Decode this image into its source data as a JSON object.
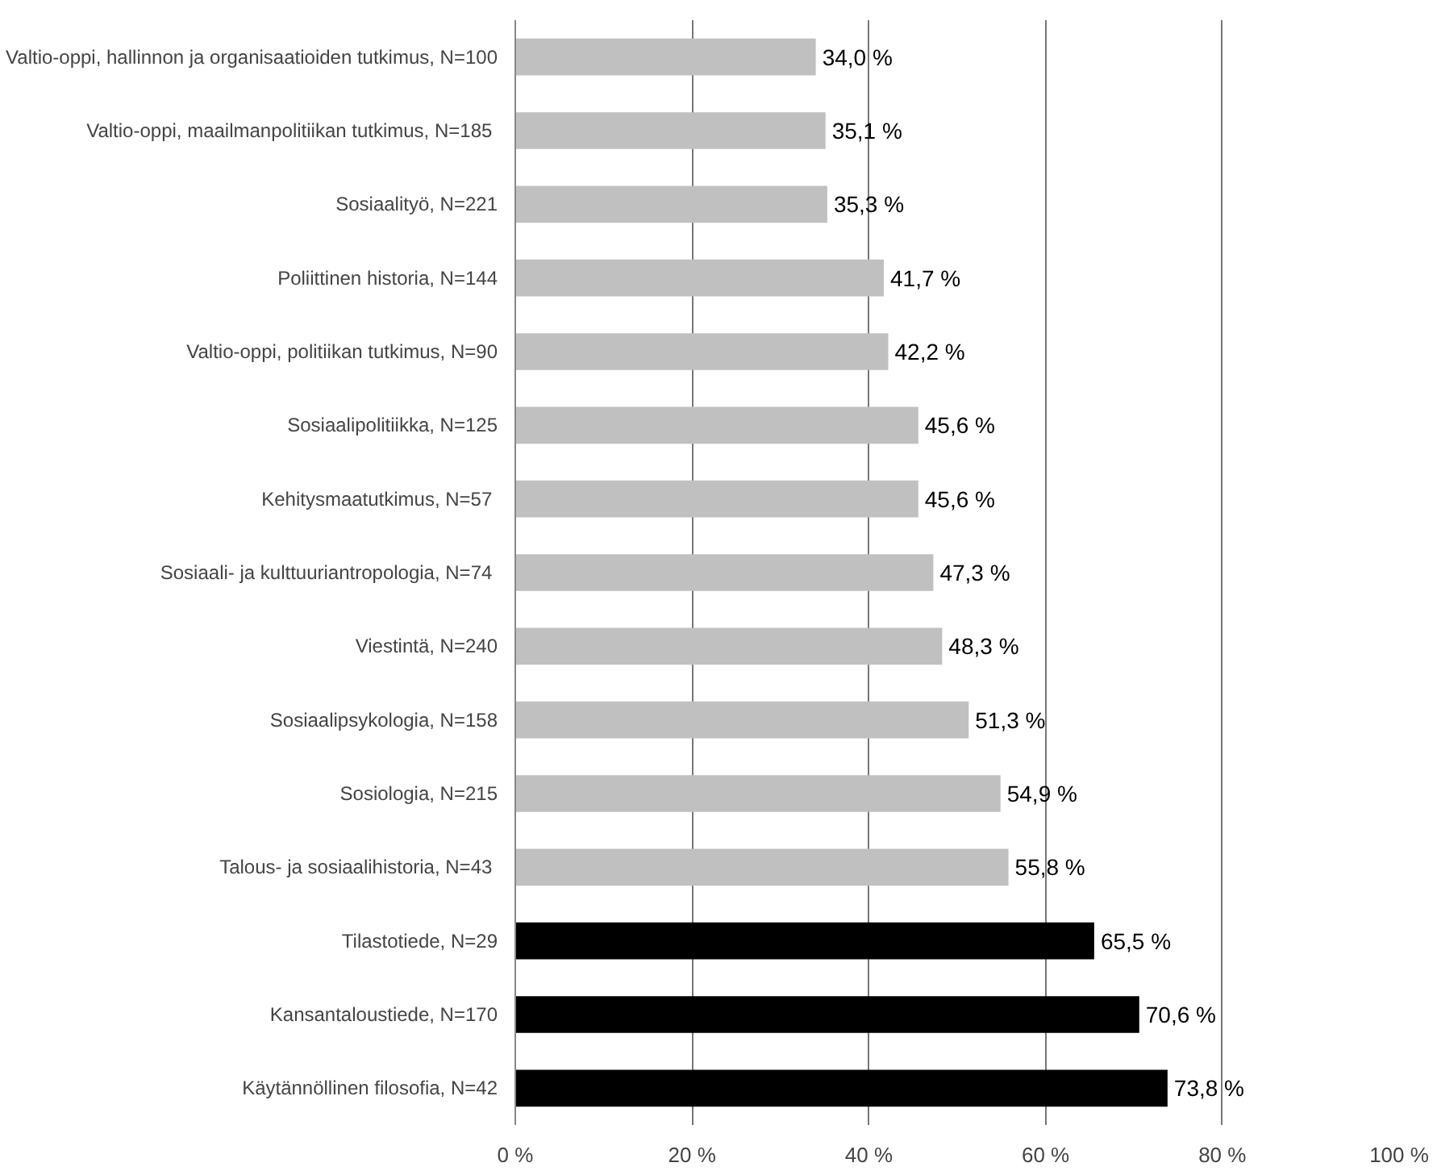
{
  "chart_data": {
    "type": "bar",
    "orientation": "horizontal",
    "categories": [
      "Valtio-oppi, hallinnon ja organisaatioiden tutkimus, N=100",
      "Valtio-oppi, maailmanpolitiikan  tutkimus, N=185",
      "Sosiaalityö, N=221",
      "Poliittinen historia, N=144",
      "Valtio-oppi, politiikan tutkimus, N=90",
      "Sosiaalipolitiikka, N=125",
      "Kehitysmaatutkimus,  N=57",
      "Sosiaali- ja kulttuuriantropologia,  N=74",
      "Viestintä, N=240",
      "Sosiaalipsykologia, N=158",
      "Sosiologia, N=215",
      "Talous- ja sosiaalihistoria,  N=43",
      "Tilastotiede, N=29",
      "Kansantaloustiede, N=170",
      "Käytännöllinen filosofia, N=42"
    ],
    "values": [
      34.0,
      35.1,
      35.3,
      41.7,
      42.2,
      45.6,
      45.6,
      47.3,
      48.3,
      51.3,
      54.9,
      55.8,
      65.5,
      70.6,
      73.8
    ],
    "value_labels": [
      "34,0 %",
      "35,1 %",
      "35,3 %",
      "41,7 %",
      "42,2 %",
      "45,6 %",
      "45,6 %",
      "47,3 %",
      "48,3 %",
      "51,3 %",
      "54,9 %",
      "55,8 %",
      "65,5 %",
      "70,6 %",
      "73,8 %"
    ],
    "colors": [
      "#c0c0c0",
      "#c0c0c0",
      "#c0c0c0",
      "#c0c0c0",
      "#c0c0c0",
      "#c0c0c0",
      "#c0c0c0",
      "#c0c0c0",
      "#c0c0c0",
      "#c0c0c0",
      "#c0c0c0",
      "#c0c0c0",
      "#000000",
      "#000000",
      "#000000"
    ],
    "xlim": [
      0,
      100
    ],
    "xticks": [
      {
        "value": 0,
        "label": "0 %"
      },
      {
        "value": 20,
        "label": "20 %"
      },
      {
        "value": 40,
        "label": "40 %"
      },
      {
        "value": 60,
        "label": "60 %"
      },
      {
        "value": 80,
        "label": "80 %"
      },
      {
        "value": 100,
        "label": "100 %"
      }
    ],
    "grid": "x"
  }
}
